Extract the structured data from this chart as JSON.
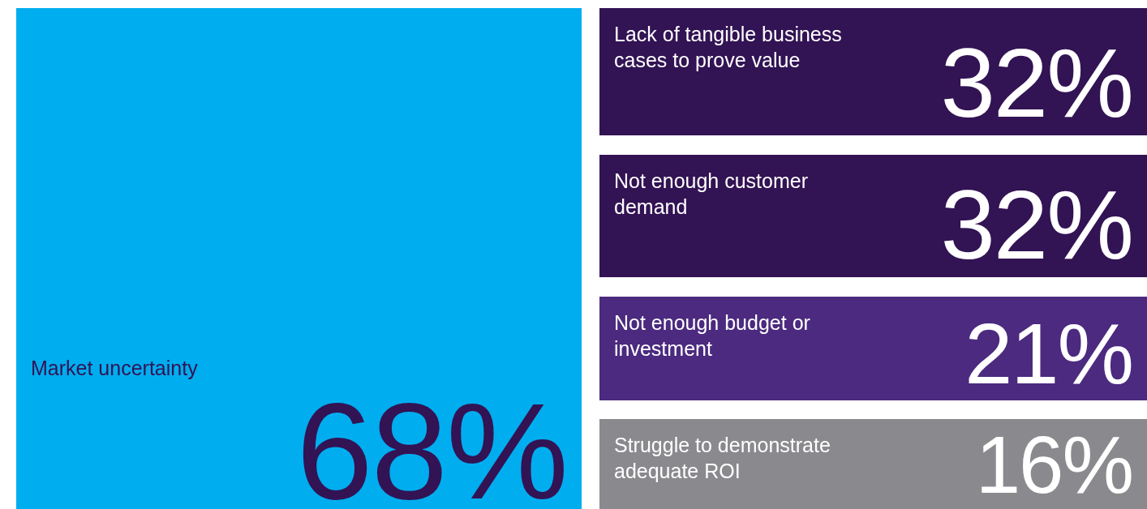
{
  "chart_data": {
    "type": "other",
    "categories": [
      "Market uncertainty",
      "Lack of tangible business cases to prove value",
      "Not enough customer demand",
      "Not enough budget or investment",
      "Struggle to demonstrate adequate ROI"
    ],
    "values": [
      68,
      32,
      32,
      21,
      16
    ],
    "value_labels": [
      "68%",
      "32%",
      "32%",
      "21%",
      "16%"
    ],
    "colors": [
      "#00adef",
      "#321354",
      "#321354",
      "#4b2a7f",
      "#8a8a8e"
    ]
  }
}
